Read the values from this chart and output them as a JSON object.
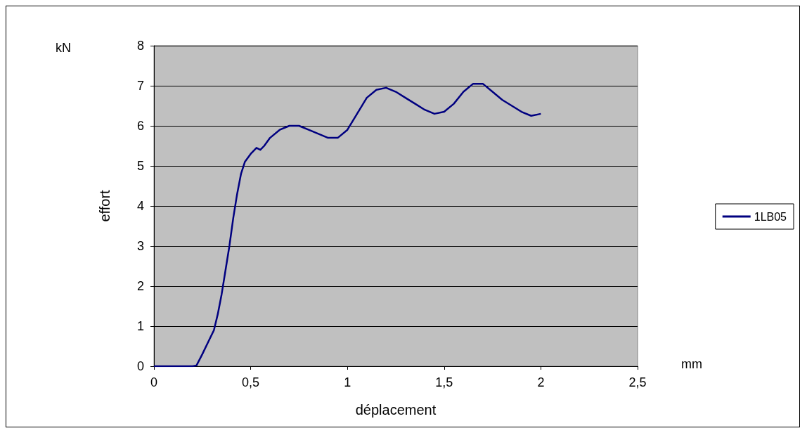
{
  "chart_data": {
    "type": "line",
    "xlabel": "déplacement",
    "ylabel": "effort",
    "annotations": [
      "kN",
      "mm"
    ],
    "x": [
      0,
      0.2,
      0.22,
      0.25,
      0.28,
      0.31,
      0.33,
      0.35,
      0.37,
      0.39,
      0.41,
      0.43,
      0.45,
      0.47,
      0.5,
      0.53,
      0.55,
      0.57,
      0.6,
      0.65,
      0.7,
      0.75,
      0.8,
      0.85,
      0.9,
      0.95,
      1.0,
      1.05,
      1.1,
      1.15,
      1.2,
      1.25,
      1.3,
      1.35,
      1.4,
      1.45,
      1.5,
      1.55,
      1.6,
      1.65,
      1.7,
      1.75,
      1.8,
      1.85,
      1.9,
      1.95,
      2.0
    ],
    "series": [
      {
        "name": "1LB05",
        "color": "#000080",
        "values": [
          0,
          0,
          0.02,
          0.3,
          0.6,
          0.9,
          1.3,
          1.8,
          2.4,
          3.0,
          3.7,
          4.3,
          4.8,
          5.1,
          5.3,
          5.45,
          5.4,
          5.5,
          5.7,
          5.9,
          6.0,
          6.0,
          5.9,
          5.8,
          5.7,
          5.7,
          5.9,
          6.3,
          6.7,
          6.9,
          6.95,
          6.85,
          6.7,
          6.55,
          6.4,
          6.3,
          6.35,
          6.55,
          6.85,
          7.05,
          7.05,
          6.85,
          6.65,
          6.5,
          6.35,
          6.25,
          6.3
        ]
      }
    ],
    "xlim": [
      0,
      2.5
    ],
    "xticks": [
      0,
      {
        "value": 0.5,
        "label": "0,5"
      },
      1,
      {
        "value": 1.5,
        "label": "1,5"
      },
      2,
      {
        "value": 2.5,
        "label": "2,5"
      }
    ],
    "ylim": [
      0,
      8
    ],
    "yticks": [
      0,
      1,
      2,
      3,
      4,
      5,
      6,
      7,
      8
    ],
    "grid": "y",
    "legend": "right",
    "marker": "none",
    "line_style": "solid"
  }
}
